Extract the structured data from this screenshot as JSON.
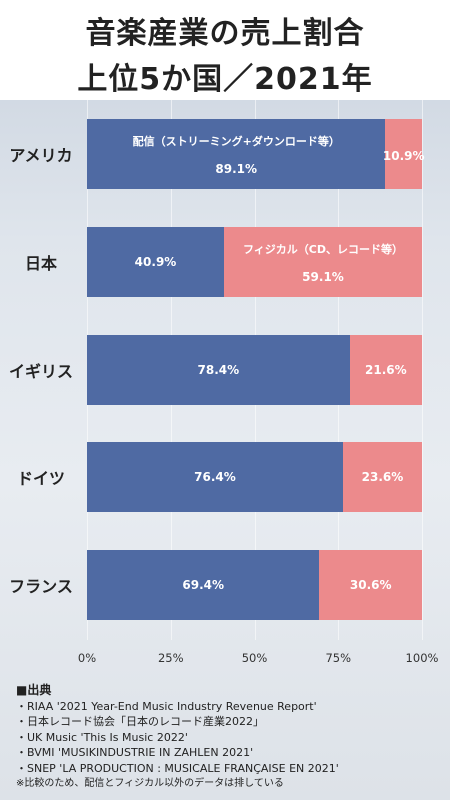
{
  "title_line1": "音楽産業の売上割合",
  "title_line2": "上位5か国／2021年",
  "chart_data": {
    "type": "bar",
    "orientation": "horizontal",
    "stacked": true,
    "categories": [
      "アメリカ",
      "日本",
      "イギリス",
      "ドイツ",
      "フランス"
    ],
    "series": [
      {
        "name": "配信（ストリーミング+ダウンロード等）",
        "values": [
          89.1,
          40.9,
          78.4,
          76.4,
          69.4
        ],
        "color": "#4f6aa3"
      },
      {
        "name": "フィジカル（CD、レコード等）",
        "values": [
          10.9,
          59.1,
          21.6,
          23.6,
          30.6
        ],
        "color": "#ec8a8c"
      }
    ],
    "value_labels": [
      [
        "89.1%",
        "40.9%",
        "78.4%",
        "76.4%",
        "69.4%"
      ],
      [
        "10.9%",
        "59.1%",
        "21.6%",
        "23.6%",
        "30.6%"
      ]
    ],
    "x_ticks": [
      "0%",
      "25%",
      "50%",
      "75%",
      "100%"
    ],
    "xlim": [
      0,
      100
    ]
  },
  "sources": {
    "heading": "■出典",
    "items": [
      "・RIAA '2021 Year-End Music Industry Revenue Report'",
      "・日本レコード協会「日本のレコード産業2022」",
      "・UK Music 'This Is Music 2022'",
      "・BVMI 'MUSIKINDUSTRIE IN ZAHLEN 2021'",
      "・SNEP 'LA PRODUCTION : MUSICALE FRANÇAISE EN 2021'"
    ],
    "note": "※比較のため、配信とフィジカル以外のデータは排している"
  }
}
